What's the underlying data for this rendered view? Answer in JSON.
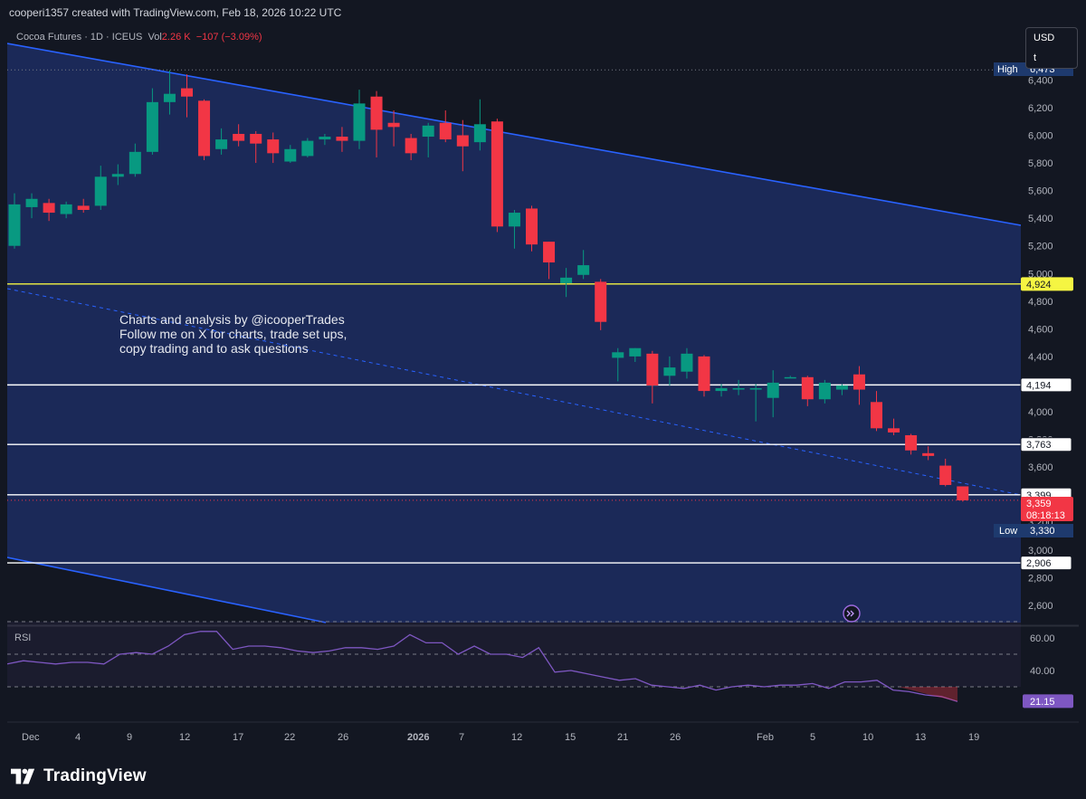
{
  "header": {
    "text": "cooperi1357 created with TradingView.com, Feb 18, 2026 10:22 UTC"
  },
  "legend": {
    "symbol": "Cocoa Futures · 1D · ICEUS",
    "vol_label": "Vol",
    "vol_value": "2.26 K",
    "change": "−107 (−3.09%)"
  },
  "currency": {
    "code": "USD",
    "unit": "t"
  },
  "annotation": {
    "lines": [
      "Charts and analysis by @icooperTrades",
      "Follow me on X for charts, trade set ups,",
      "copy trading and to ask questions"
    ]
  },
  "footer": {
    "brand": "TradingView"
  },
  "colors": {
    "background": "#131722",
    "channel_fill": "#1b2a5c",
    "channel_line": "#2962ff",
    "up": "#089981",
    "down": "#f23645",
    "yellow_level": "#f5f542",
    "rsi_line": "#7e57c2"
  },
  "chart_data": {
    "type": "candlestick",
    "price_axis": {
      "ticks": [
        2600,
        2800,
        3000,
        3200,
        3400,
        3600,
        3800,
        4000,
        4200,
        4400,
        4600,
        4800,
        5000,
        5200,
        5400,
        5600,
        5800,
        6000,
        6200,
        6400
      ],
      "tick_labels": [
        "2,600",
        "2,800",
        "3,000",
        "3,200",
        "3,400",
        "3,600",
        "3,800",
        "4,000",
        "4,200",
        "4,400",
        "4,600",
        "4,800",
        "5,000",
        "5,200",
        "5,400",
        "5,600",
        "5,800",
        "6,000",
        "6,200",
        "6,400"
      ]
    },
    "time_axis": {
      "labels": [
        "Dec",
        "4",
        "9",
        "12",
        "17",
        "22",
        "26",
        "2026",
        "7",
        "12",
        "15",
        "21",
        "26",
        "Feb",
        "5",
        "10",
        "13",
        "19"
      ]
    },
    "candles": [
      {
        "date": "Dec 1",
        "o": 5200,
        "h": 5580,
        "l": 5180,
        "c": 5500
      },
      {
        "date": "Dec 2",
        "o": 5480,
        "h": 5580,
        "l": 5400,
        "c": 5540
      },
      {
        "date": "Dec 3",
        "o": 5510,
        "h": 5540,
        "l": 5380,
        "c": 5440
      },
      {
        "date": "Dec 4",
        "o": 5430,
        "h": 5520,
        "l": 5400,
        "c": 5500
      },
      {
        "date": "Dec 5",
        "o": 5490,
        "h": 5540,
        "l": 5440,
        "c": 5460
      },
      {
        "date": "Dec 8",
        "o": 5490,
        "h": 5780,
        "l": 5460,
        "c": 5700
      },
      {
        "date": "Dec 9",
        "o": 5700,
        "h": 5790,
        "l": 5640,
        "c": 5720
      },
      {
        "date": "Dec 10",
        "o": 5720,
        "h": 5940,
        "l": 5700,
        "c": 5880
      },
      {
        "date": "Dec 11",
        "o": 5880,
        "h": 6340,
        "l": 5860,
        "c": 6240
      },
      {
        "date": "Dec 12",
        "o": 6240,
        "h": 6470,
        "l": 6150,
        "c": 6300
      },
      {
        "date": "Dec 15",
        "o": 6340,
        "h": 6440,
        "l": 6130,
        "c": 6280
      },
      {
        "date": "Dec 16",
        "o": 6250,
        "h": 6260,
        "l": 5820,
        "c": 5850
      },
      {
        "date": "Dec 17",
        "o": 5900,
        "h": 6050,
        "l": 5860,
        "c": 5970
      },
      {
        "date": "Dec 18",
        "o": 6010,
        "h": 6080,
        "l": 5920,
        "c": 5960
      },
      {
        "date": "Dec 19",
        "o": 6010,
        "h": 6030,
        "l": 5800,
        "c": 5940
      },
      {
        "date": "Dec 22",
        "o": 5970,
        "h": 6020,
        "l": 5800,
        "c": 5870
      },
      {
        "date": "Dec 23",
        "o": 5810,
        "h": 5930,
        "l": 5800,
        "c": 5900
      },
      {
        "date": "Dec 24",
        "o": 5850,
        "h": 5980,
        "l": 5840,
        "c": 5960
      },
      {
        "date": "Dec 26",
        "o": 5970,
        "h": 6010,
        "l": 5930,
        "c": 5990
      },
      {
        "date": "Dec 29",
        "o": 5990,
        "h": 6060,
        "l": 5880,
        "c": 5960
      },
      {
        "date": "Dec 30",
        "o": 5960,
        "h": 6330,
        "l": 5900,
        "c": 6230
      },
      {
        "date": "Dec 31",
        "o": 6280,
        "h": 6320,
        "l": 5840,
        "c": 6040
      },
      {
        "date": "Jan 2",
        "o": 6090,
        "h": 6180,
        "l": 5920,
        "c": 6060
      },
      {
        "date": "Jan 5",
        "o": 5980,
        "h": 6010,
        "l": 5820,
        "c": 5870
      },
      {
        "date": "Jan 6",
        "o": 5990,
        "h": 6090,
        "l": 5840,
        "c": 6070
      },
      {
        "date": "Jan 7",
        "o": 6090,
        "h": 6180,
        "l": 5950,
        "c": 5970
      },
      {
        "date": "Jan 8",
        "o": 6000,
        "h": 6110,
        "l": 5740,
        "c": 5920
      },
      {
        "date": "Jan 9",
        "o": 5950,
        "h": 6260,
        "l": 5890,
        "c": 6080
      },
      {
        "date": "Jan 12",
        "o": 6100,
        "h": 6120,
        "l": 5300,
        "c": 5340
      },
      {
        "date": "Jan 13",
        "o": 5340,
        "h": 5460,
        "l": 5180,
        "c": 5440
      },
      {
        "date": "Jan 14",
        "o": 5470,
        "h": 5490,
        "l": 5160,
        "c": 5210
      },
      {
        "date": "Jan 15",
        "o": 5230,
        "h": 5230,
        "l": 4960,
        "c": 5080
      },
      {
        "date": "Jan 16",
        "o": 4930,
        "h": 5040,
        "l": 4830,
        "c": 4970
      },
      {
        "date": "Jan 19",
        "o": 4990,
        "h": 5170,
        "l": 4960,
        "c": 5060
      },
      {
        "date": "Jan 20",
        "o": 4940,
        "h": 4960,
        "l": 4590,
        "c": 4650
      },
      {
        "date": "Jan 21",
        "o": 4390,
        "h": 4460,
        "l": 4220,
        "c": 4430
      },
      {
        "date": "Jan 22",
        "o": 4400,
        "h": 4460,
        "l": 4360,
        "c": 4460
      },
      {
        "date": "Jan 23",
        "o": 4420,
        "h": 4440,
        "l": 4060,
        "c": 4190
      },
      {
        "date": "Jan 26",
        "o": 4260,
        "h": 4400,
        "l": 4190,
        "c": 4320
      },
      {
        "date": "Jan 27",
        "o": 4290,
        "h": 4460,
        "l": 4240,
        "c": 4420
      },
      {
        "date": "Jan 28",
        "o": 4400,
        "h": 4410,
        "l": 4110,
        "c": 4150
      },
      {
        "date": "Jan 29",
        "o": 4150,
        "h": 4200,
        "l": 4110,
        "c": 4170
      },
      {
        "date": "Jan 30",
        "o": 4170,
        "h": 4230,
        "l": 4120,
        "c": 4170
      },
      {
        "date": "Feb 2",
        "o": 4170,
        "h": 4200,
        "l": 3930,
        "c": 4170
      },
      {
        "date": "Feb 3",
        "o": 4100,
        "h": 4300,
        "l": 3960,
        "c": 4210
      },
      {
        "date": "Feb 4",
        "o": 4250,
        "h": 4260,
        "l": 4250,
        "c": 4250
      },
      {
        "date": "Feb 5",
        "o": 4250,
        "h": 4260,
        "l": 4040,
        "c": 4090
      },
      {
        "date": "Feb 6",
        "o": 4090,
        "h": 4230,
        "l": 4060,
        "c": 4210
      },
      {
        "date": "Feb 9",
        "o": 4160,
        "h": 4200,
        "l": 4120,
        "c": 4190
      },
      {
        "date": "Feb 10",
        "o": 4270,
        "h": 4330,
        "l": 4050,
        "c": 4160
      },
      {
        "date": "Feb 11",
        "o": 4070,
        "h": 4150,
        "l": 3860,
        "c": 3880
      },
      {
        "date": "Feb 12",
        "o": 3880,
        "h": 3950,
        "l": 3830,
        "c": 3850
      },
      {
        "date": "Feb 13",
        "o": 3830,
        "h": 3840,
        "l": 3690,
        "c": 3720
      },
      {
        "date": "Feb 16",
        "o": 3700,
        "h": 3750,
        "l": 3650,
        "c": 3680
      },
      {
        "date": "Feb 17",
        "o": 3610,
        "h": 3660,
        "l": 3460,
        "c": 3470
      },
      {
        "date": "Feb 18",
        "o": 3460,
        "h": 3460,
        "l": 3350,
        "c": 3359
      }
    ],
    "levels": [
      {
        "value": 4924,
        "label": "4,924",
        "style": "yellow"
      },
      {
        "value": 4194,
        "label": "4,194",
        "style": "white"
      },
      {
        "value": 3763,
        "label": "3,763",
        "style": "white"
      },
      {
        "value": 3399,
        "label": "3,399",
        "style": "white"
      },
      {
        "value": 2906,
        "label": "2,906",
        "style": "white"
      }
    ],
    "high_label": "High",
    "high_value": "6,473",
    "low_label": "Low",
    "low_value": "3,330",
    "last_price": "3,359",
    "countdown": "08:18:13",
    "rsi": {
      "label": "RSI",
      "ticks": [
        "60.00",
        "40.00"
      ],
      "bands": [
        70,
        50,
        30
      ],
      "current": "21.15",
      "values": [
        44,
        46,
        45,
        44,
        45,
        45,
        44,
        50,
        51,
        50,
        55,
        62,
        64,
        64,
        53,
        55,
        55,
        54,
        52,
        51,
        52,
        54,
        54,
        53,
        55,
        62,
        57,
        57,
        50,
        55,
        50,
        50,
        48,
        54,
        39,
        40,
        38,
        36,
        34,
        35,
        31,
        30,
        29,
        31,
        28,
        30,
        31,
        30,
        31,
        31,
        32,
        29,
        33,
        33,
        34,
        28,
        27,
        25,
        24,
        21
      ]
    }
  }
}
